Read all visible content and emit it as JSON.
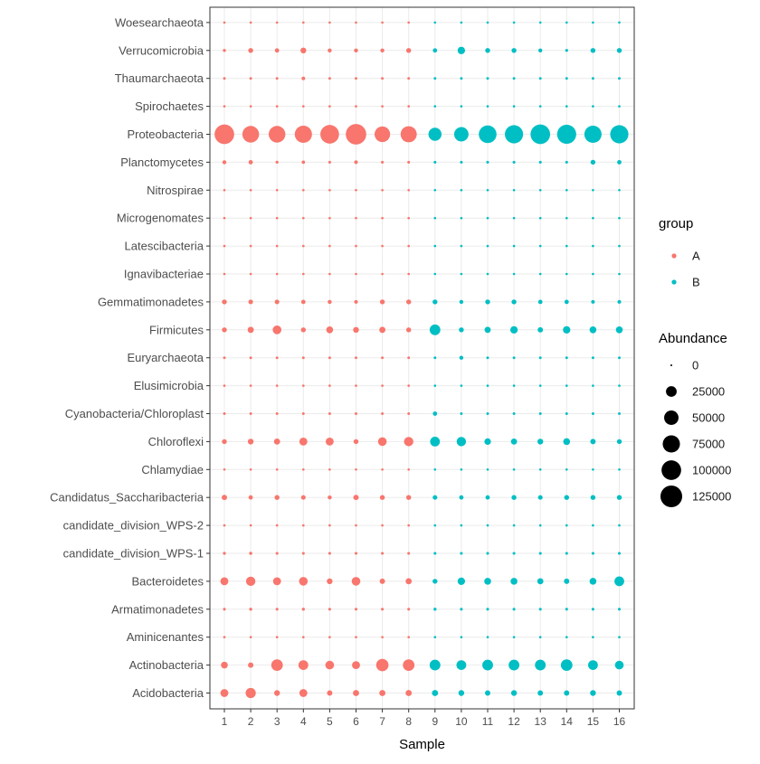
{
  "chart_data": {
    "type": "scatter",
    "title": "",
    "xlabel": "Sample",
    "ylabel": "",
    "x": [
      "1",
      "2",
      "3",
      "4",
      "5",
      "6",
      "7",
      "8",
      "9",
      "10",
      "11",
      "12",
      "13",
      "14",
      "15",
      "16"
    ],
    "groups": {
      "1": "A",
      "2": "A",
      "3": "A",
      "4": "A",
      "5": "A",
      "6": "A",
      "7": "A",
      "8": "A",
      "9": "B",
      "10": "B",
      "11": "B",
      "12": "B",
      "13": "B",
      "14": "B",
      "15": "B",
      "16": "B"
    },
    "categories": [
      "Acidobacteria",
      "Actinobacteria",
      "Aminicenantes",
      "Armatimonadetes",
      "Bacteroidetes",
      "candidate_division_WPS-1",
      "candidate_division_WPS-2",
      "Candidatus_Saccharibacteria",
      "Chlamydiae",
      "Chloroflexi",
      "Cyanobacteria/Chloroplast",
      "Elusimicrobia",
      "Euryarchaeota",
      "Firmicutes",
      "Gemmatimonadetes",
      "Ignavibacteriae",
      "Latescibacteria",
      "Microgenomates",
      "Nitrospirae",
      "Planctomycetes",
      "Proteobacteria",
      "Spirochaetes",
      "Thaumarchaeota",
      "Verrucomicrobia",
      "Woesearchaeota"
    ],
    "abundance": {
      "Acidobacteria": [
        12000,
        22000,
        5000,
        12000,
        4000,
        6000,
        6000,
        6000,
        6000,
        5000,
        4000,
        5000,
        4000,
        4000,
        5000,
        4000
      ],
      "Actinobacteria": [
        8000,
        4000,
        30000,
        20000,
        15000,
        12000,
        35000,
        30000,
        25000,
        20000,
        25000,
        25000,
        25000,
        30000,
        20000,
        15000
      ],
      "Aminicenantes": [
        100,
        100,
        100,
        100,
        100,
        100,
        100,
        100,
        100,
        100,
        100,
        100,
        100,
        100,
        100,
        100
      ],
      "Armatimonadetes": [
        300,
        500,
        300,
        500,
        300,
        300,
        300,
        300,
        500,
        300,
        300,
        300,
        300,
        300,
        300,
        300
      ],
      "Bacteroidetes": [
        12000,
        18000,
        12000,
        15000,
        5000,
        15000,
        4000,
        6000,
        3000,
        10000,
        8000,
        8000,
        6000,
        4000,
        8000,
        20000
      ],
      "candidate_division_WPS-1": [
        400,
        600,
        300,
        300,
        300,
        300,
        300,
        300,
        300,
        300,
        300,
        300,
        300,
        300,
        300,
        300
      ],
      "candidate_division_WPS-2": [
        100,
        100,
        100,
        100,
        100,
        100,
        100,
        100,
        100,
        100,
        100,
        100,
        100,
        100,
        100,
        100
      ],
      "Candidatus_Saccharibacteria": [
        4000,
        2000,
        3000,
        2500,
        1500,
        4000,
        3000,
        3000,
        2500,
        2000,
        2000,
        3000,
        2500,
        3000,
        3000,
        3000
      ],
      "Chlamydiae": [
        100,
        100,
        100,
        100,
        100,
        100,
        100,
        100,
        100,
        100,
        100,
        100,
        100,
        100,
        100,
        100
      ],
      "Chloroflexi": [
        3000,
        5000,
        6000,
        12000,
        12000,
        3000,
        15000,
        18000,
        20000,
        18000,
        7000,
        6000,
        5000,
        8000,
        4000,
        3000
      ],
      "Cyanobacteria/Chloroplast": [
        200,
        200,
        200,
        200,
        200,
        200,
        200,
        200,
        2000,
        200,
        200,
        200,
        200,
        200,
        200,
        200
      ],
      "Elusimicrobia": [
        100,
        100,
        100,
        100,
        100,
        100,
        100,
        100,
        100,
        100,
        100,
        100,
        100,
        100,
        100,
        100
      ],
      "Euryarchaeota": [
        200,
        200,
        200,
        200,
        200,
        200,
        200,
        200,
        200,
        1500,
        200,
        200,
        200,
        200,
        200,
        200
      ],
      "Firmicutes": [
        3000,
        6000,
        15000,
        3000,
        8000,
        5000,
        6000,
        3000,
        25000,
        3000,
        6000,
        10000,
        4000,
        10000,
        8000,
        8000
      ],
      "Gemmatimonadetes": [
        3000,
        2500,
        2500,
        2000,
        1500,
        1000,
        3000,
        3000,
        3000,
        1500,
        3000,
        3000,
        2000,
        2000,
        1000,
        1000
      ],
      "Ignavibacteriae": [
        100,
        100,
        100,
        100,
        100,
        100,
        100,
        100,
        100,
        100,
        100,
        100,
        100,
        100,
        100,
        100
      ],
      "Latescibacteria": [
        100,
        100,
        100,
        100,
        100,
        100,
        100,
        100,
        100,
        100,
        100,
        100,
        100,
        100,
        100,
        100
      ],
      "Microgenomates": [
        100,
        100,
        100,
        100,
        100,
        100,
        100,
        100,
        100,
        100,
        100,
        100,
        100,
        100,
        100,
        100
      ],
      "Nitrospirae": [
        100,
        100,
        100,
        100,
        100,
        100,
        100,
        100,
        100,
        100,
        100,
        100,
        100,
        100,
        100,
        100
      ],
      "Planctomycetes": [
        1500,
        2000,
        400,
        800,
        300,
        1000,
        300,
        300,
        300,
        300,
        300,
        300,
        300,
        300,
        3000,
        2000
      ],
      "Proteobacteria": [
        100000,
        70000,
        70000,
        75000,
        90000,
        110000,
        60000,
        65000,
        40000,
        50000,
        80000,
        85000,
        100000,
        95000,
        75000,
        85000
      ],
      "Spirochaetes": [
        100,
        100,
        100,
        100,
        100,
        100,
        100,
        100,
        100,
        100,
        100,
        100,
        100,
        100,
        100,
        100
      ],
      "Thaumarchaeota": [
        200,
        200,
        200,
        1000,
        200,
        200,
        200,
        200,
        200,
        200,
        200,
        200,
        200,
        200,
        200,
        200
      ],
      "Verrucomicrobia": [
        500,
        3000,
        2000,
        5000,
        1500,
        1500,
        1500,
        3000,
        2000,
        10000,
        3000,
        3000,
        1500,
        400,
        3000,
        3000
      ],
      "Woesearchaeota": [
        100,
        100,
        100,
        100,
        100,
        100,
        100,
        100,
        100,
        100,
        100,
        100,
        100,
        100,
        100,
        100
      ]
    },
    "colors": {
      "A": "#F8766D",
      "B": "#00BFC4"
    },
    "legend_group": {
      "title": "group",
      "items": [
        "A",
        "B"
      ]
    },
    "legend_size": {
      "title": "Abundance",
      "breaks": [
        0,
        25000,
        50000,
        75000,
        100000,
        125000
      ],
      "labels": [
        "0",
        "25000",
        "50000",
        "75000",
        "100000",
        "125000"
      ]
    },
    "size_scale_max": 125000,
    "grid": true,
    "legend_position": "right"
  }
}
